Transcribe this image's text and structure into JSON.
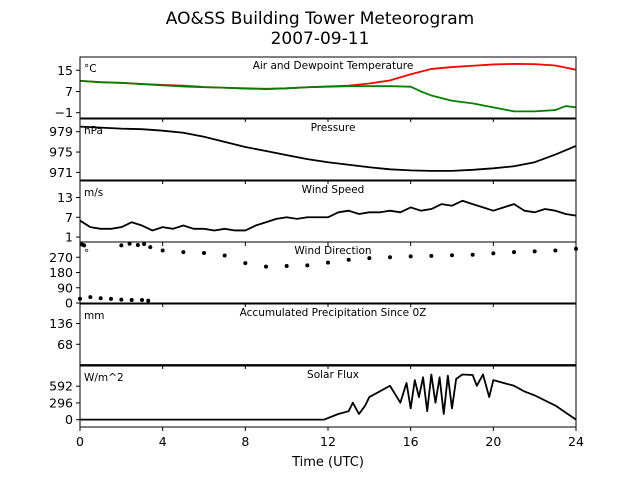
{
  "chart": {
    "title_line1": "AO&SS Building Tower Meteorogram",
    "title_line2": "2007-09-11",
    "xlabel": "Time (UTC)",
    "xticks": [
      0,
      4,
      8,
      12,
      16,
      20,
      24
    ],
    "xlim": [
      0,
      24
    ]
  },
  "chart_data": [
    {
      "type": "line",
      "title": "Air and Dewpoint Temperature",
      "unit": "°C",
      "ylim": [
        -3,
        20
      ],
      "yticks": [
        15,
        7,
        -1
      ],
      "series": [
        {
          "color": "#ff0000",
          "x": [
            0,
            1,
            2,
            3,
            4,
            5,
            6,
            7,
            8,
            9,
            10,
            11,
            12,
            13,
            14,
            15,
            16,
            17,
            18,
            19,
            20,
            21,
            22,
            23,
            24
          ],
          "y": [
            11,
            10.5,
            10.3,
            9.8,
            9.5,
            9.2,
            8.7,
            8.4,
            8.2,
            8.0,
            8.2,
            8.6,
            8.9,
            9.2,
            10.0,
            11.2,
            13.5,
            15.5,
            16.2,
            16.7,
            17.2,
            17.4,
            17.3,
            16.8,
            15.2
          ]
        },
        {
          "color": "#008000",
          "x": [
            0,
            1,
            2,
            3,
            4,
            5,
            6,
            7,
            8,
            9,
            10,
            11,
            12,
            13,
            14,
            15,
            16,
            16.5,
            17,
            17.5,
            18,
            19,
            20,
            21,
            22,
            23,
            23.5,
            24
          ],
          "y": [
            11,
            10.5,
            10.2,
            9.8,
            9.3,
            8.9,
            8.6,
            8.4,
            8.1,
            7.9,
            8.2,
            8.6,
            8.8,
            9.0,
            9.0,
            9.0,
            8.8,
            7.0,
            5.5,
            4.5,
            3.5,
            2.5,
            1.0,
            -0.5,
            -0.5,
            0.0,
            1.5,
            1.0
          ]
        }
      ]
    },
    {
      "type": "line",
      "title": "Pressure",
      "unit": "hPa",
      "ylim": [
        969.5,
        981.5
      ],
      "yticks": [
        979,
        975,
        971
      ],
      "series": [
        {
          "color": "#000000",
          "x": [
            0,
            1,
            2,
            3,
            4,
            5,
            6,
            7,
            8,
            9,
            10,
            11,
            12,
            13,
            14,
            15,
            16,
            17,
            18,
            19,
            20,
            21,
            22,
            23,
            24
          ],
          "y": [
            980.0,
            979.8,
            979.6,
            979.5,
            979.2,
            978.8,
            978.0,
            977.0,
            976.0,
            975.2,
            974.4,
            973.6,
            973.0,
            972.5,
            972.0,
            971.6,
            971.4,
            971.3,
            971.3,
            971.5,
            971.8,
            972.2,
            973.0,
            974.5,
            976.2
          ]
        }
      ]
    },
    {
      "type": "line",
      "title": "Wind Speed",
      "unit": "m/s",
      "ylim": [
        -0.5,
        18
      ],
      "yticks": [
        13,
        7,
        1
      ],
      "series": [
        {
          "color": "#000000",
          "x": [
            0,
            0.5,
            1,
            1.5,
            2,
            2.5,
            3,
            3.5,
            4,
            4.5,
            5,
            5.5,
            6,
            6.5,
            7,
            7.5,
            8,
            8.5,
            9,
            9.5,
            10,
            10.5,
            11,
            11.5,
            12,
            12.5,
            13,
            13.5,
            14,
            14.5,
            15,
            15.5,
            16,
            16.5,
            17,
            17.5,
            18,
            18.5,
            19,
            19.5,
            20,
            20.5,
            21,
            21.5,
            22,
            22.5,
            23,
            23.5,
            24
          ],
          "y": [
            6,
            4,
            3.5,
            3.5,
            4,
            5.5,
            4.5,
            3,
            4,
            3.5,
            4.5,
            3.5,
            3.5,
            3,
            3.5,
            3,
            3,
            4.5,
            5.5,
            6.5,
            7,
            6.5,
            7,
            7,
            7,
            8.5,
            9,
            8,
            8.5,
            8.5,
            9,
            8.5,
            10,
            9,
            9.5,
            11,
            10.5,
            12,
            11,
            10,
            9,
            10,
            11,
            9,
            8.5,
            9.5,
            9,
            8,
            7.5
          ]
        }
      ]
    },
    {
      "type": "scatter",
      "title": "Wind Direction",
      "unit": "°",
      "ylim": [
        0,
        360
      ],
      "yticks": [
        270,
        180,
        90,
        0
      ],
      "series": [
        {
          "color": "#000000",
          "x": [
            0,
            0.5,
            1,
            1.5,
            2,
            2.5,
            3,
            3.3,
            3.4,
            4,
            5,
            6,
            7,
            8,
            9,
            10,
            11,
            12,
            13,
            14,
            15,
            16,
            17,
            18,
            19,
            20,
            21,
            22,
            23,
            24
          ],
          "y": [
            25,
            35,
            28,
            24,
            20,
            18,
            18,
            14,
            330,
            310,
            300,
            295,
            280,
            235,
            215,
            218,
            222,
            238,
            255,
            265,
            270,
            275,
            278,
            282,
            285,
            293,
            300,
            305,
            310,
            320
          ]
        },
        {
          "color": "#000000",
          "x": [
            0.1,
            0.2,
            2,
            2.4,
            2.8,
            3.1
          ],
          "y": [
            345,
            340,
            340,
            350,
            342,
            348
          ]
        }
      ]
    },
    {
      "type": "line",
      "title": "Accumulated Precipitation Since 0Z",
      "unit": "mm",
      "ylim": [
        0,
        200
      ],
      "yticks": [
        136,
        68
      ],
      "series": [
        {
          "color": "#000000",
          "x": [
            0,
            24
          ],
          "y": [
            0,
            0
          ]
        }
      ]
    },
    {
      "type": "line",
      "title": "Solar Flux",
      "unit": "W/m^2",
      "ylim": [
        -130,
        950
      ],
      "yticks": [
        592,
        296,
        0
      ],
      "series": [
        {
          "color": "#000000",
          "x": [
            0,
            11.8,
            12.5,
            13.0,
            13.2,
            13.5,
            13.8,
            14.0,
            14.5,
            15.0,
            15.5,
            15.8,
            16.0,
            16.2,
            16.4,
            16.6,
            16.8,
            17.0,
            17.2,
            17.4,
            17.6,
            17.8,
            18.0,
            18.2,
            18.5,
            19.0,
            19.2,
            19.5,
            19.8,
            20.0,
            20.5,
            21.0,
            21.5,
            22.0,
            23.0,
            24.0
          ],
          "y": [
            0,
            0,
            100,
            150,
            300,
            100,
            250,
            400,
            500,
            600,
            300,
            650,
            200,
            700,
            400,
            750,
            150,
            800,
            300,
            750,
            100,
            780,
            200,
            720,
            800,
            790,
            600,
            800,
            400,
            700,
            650,
            600,
            500,
            430,
            250,
            0
          ]
        }
      ]
    }
  ]
}
